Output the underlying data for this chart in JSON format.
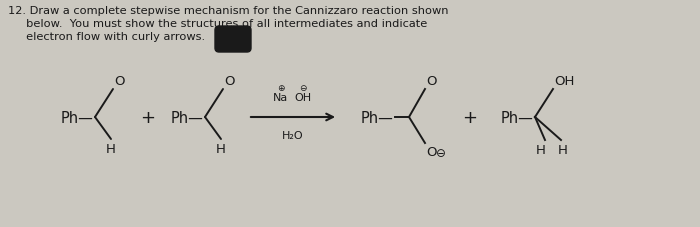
{
  "bg_color": "#cbc8c0",
  "text_color": "#1a1a1a",
  "title_line1": "12. Draw a complete stepwise mechanism for the Cannizzaro reaction shown",
  "title_line2": "     below.  You must show the structures of all intermediates and indicate",
  "title_line3": "     electron flow with curly arrows.",
  "font_size_title": 8.2,
  "font_size_chem": 10.5,
  "font_size_label": 9.5,
  "font_size_small": 7.5,
  "reagent_above": "Na",
  "reagent_above2": "OH",
  "reagent_below": "H₂O"
}
